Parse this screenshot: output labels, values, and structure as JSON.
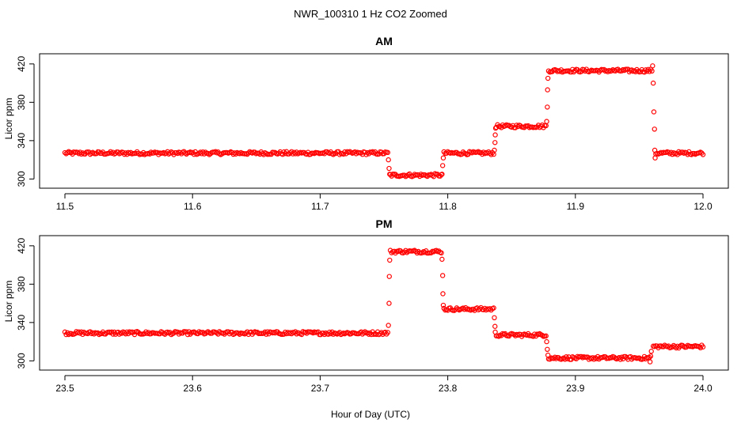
{
  "figure": {
    "title": "NWR_100310  1 Hz CO2 Zoomed",
    "xlabel": "Hour of Day (UTC)"
  },
  "chart_data": [
    {
      "type": "scatter",
      "title": "AM",
      "ylabel": "Licor ppm",
      "xlim": [
        11.5,
        12.0
      ],
      "ylim": [
        297,
        424
      ],
      "xticks": [
        "11.5",
        "11.6",
        "11.7",
        "11.8",
        "11.9",
        "12.0"
      ],
      "yticks": [
        "300",
        "340",
        "380",
        "420"
      ],
      "grid": false,
      "marker_color": "#ff0000",
      "steps": [
        {
          "x_start": 11.5,
          "x_end": 11.753,
          "y": 327
        },
        {
          "x_start": 11.755,
          "x_end": 11.795,
          "y": 304
        },
        {
          "x_start": 11.797,
          "x_end": 11.836,
          "y": 327
        },
        {
          "x_start": 11.838,
          "x_end": 11.877,
          "y": 355
        },
        {
          "x_start": 11.879,
          "x_end": 11.96,
          "y": 413
        },
        {
          "x_start": 11.963,
          "x_end": 12.0,
          "y": 327
        }
      ],
      "transitions": [
        {
          "x": 11.7535,
          "y": 320
        },
        {
          "x": 11.754,
          "y": 311
        },
        {
          "x": 11.7545,
          "y": 305
        },
        {
          "x": 11.7955,
          "y": 305
        },
        {
          "x": 11.796,
          "y": 314
        },
        {
          "x": 11.7965,
          "y": 322
        },
        {
          "x": 11.8365,
          "y": 330
        },
        {
          "x": 11.837,
          "y": 338
        },
        {
          "x": 11.8372,
          "y": 346
        },
        {
          "x": 11.8375,
          "y": 353
        },
        {
          "x": 11.8775,
          "y": 360
        },
        {
          "x": 11.878,
          "y": 375
        },
        {
          "x": 11.8782,
          "y": 393
        },
        {
          "x": 11.8785,
          "y": 405
        },
        {
          "x": 11.9605,
          "y": 418
        },
        {
          "x": 11.961,
          "y": 400
        },
        {
          "x": 11.9615,
          "y": 370
        },
        {
          "x": 11.962,
          "y": 352
        },
        {
          "x": 11.9622,
          "y": 330
        },
        {
          "x": 11.9625,
          "y": 322
        }
      ]
    },
    {
      "type": "scatter",
      "title": "PM",
      "ylabel": "Licor ppm",
      "xlim": [
        23.5,
        24.0
      ],
      "ylim": [
        297,
        424
      ],
      "xticks": [
        "23.5",
        "23.6",
        "23.7",
        "23.8",
        "23.9",
        "24.0"
      ],
      "yticks": [
        "300",
        "340",
        "380",
        "420"
      ],
      "grid": false,
      "marker_color": "#ff0000",
      "steps": [
        {
          "x_start": 23.5,
          "x_end": 23.753,
          "y": 329
        },
        {
          "x_start": 23.755,
          "x_end": 23.795,
          "y": 414
        },
        {
          "x_start": 23.797,
          "x_end": 23.836,
          "y": 354
        },
        {
          "x_start": 23.838,
          "x_end": 23.877,
          "y": 327
        },
        {
          "x_start": 23.879,
          "x_end": 23.958,
          "y": 303
        },
        {
          "x_start": 23.961,
          "x_end": 24.0,
          "y": 315
        }
      ],
      "transitions": [
        {
          "x": 23.7535,
          "y": 337
        },
        {
          "x": 23.754,
          "y": 360
        },
        {
          "x": 23.7542,
          "y": 388
        },
        {
          "x": 23.7545,
          "y": 405
        },
        {
          "x": 23.7955,
          "y": 406
        },
        {
          "x": 23.796,
          "y": 389
        },
        {
          "x": 23.7962,
          "y": 370
        },
        {
          "x": 23.7965,
          "y": 358
        },
        {
          "x": 23.8365,
          "y": 345
        },
        {
          "x": 23.837,
          "y": 336
        },
        {
          "x": 23.8372,
          "y": 330
        },
        {
          "x": 23.8775,
          "y": 320
        },
        {
          "x": 23.878,
          "y": 312
        },
        {
          "x": 23.8785,
          "y": 306
        },
        {
          "x": 23.9585,
          "y": 299
        },
        {
          "x": 23.959,
          "y": 305
        },
        {
          "x": 23.9595,
          "y": 310
        }
      ]
    }
  ]
}
